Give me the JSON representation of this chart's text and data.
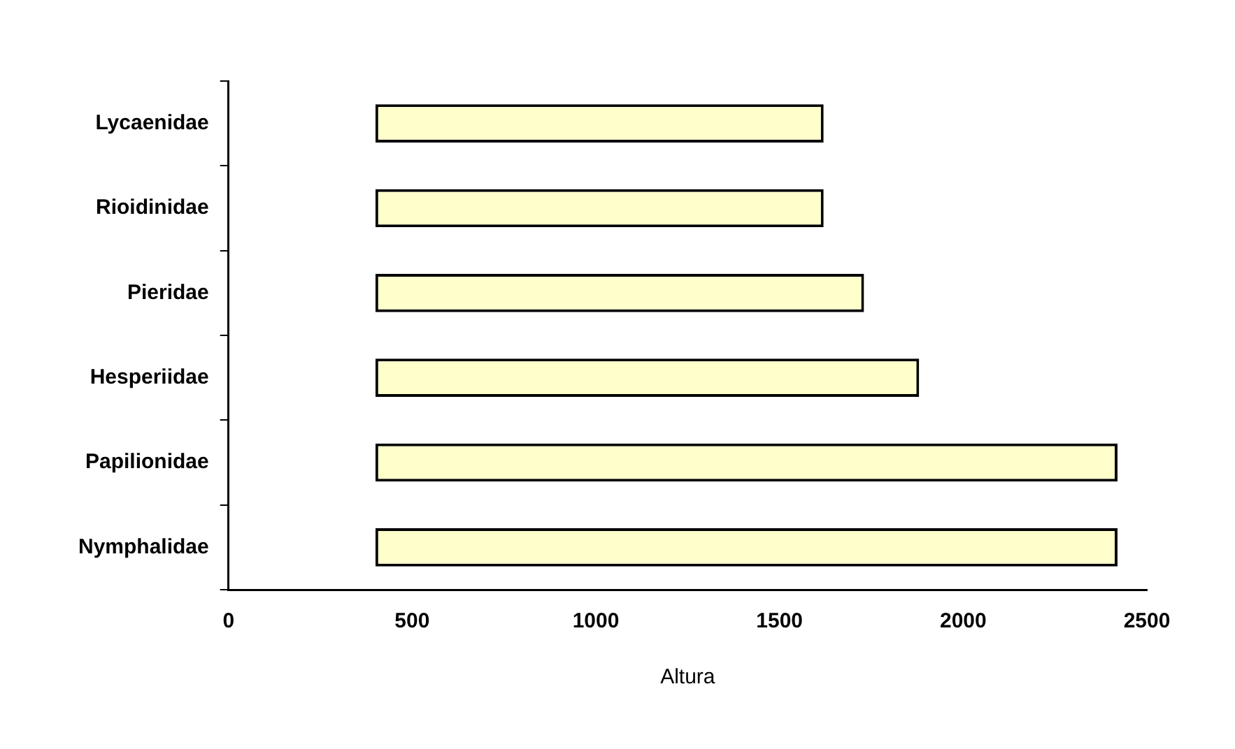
{
  "chart_data": {
    "type": "bar",
    "orientation": "horizontal",
    "xlabel": "Altura",
    "categories": [
      "Lycaenidae",
      "Rioidinidae",
      "Pieridae",
      "Hesperiidae",
      "Papilionidae",
      "Nymphalidae"
    ],
    "base": [
      400,
      400,
      400,
      400,
      400,
      400
    ],
    "values": [
      1220,
      1220,
      1330,
      1480,
      2020,
      2020
    ],
    "color": "#ffffcc",
    "xlim": [
      0,
      2500
    ],
    "xticks": [
      0,
      500,
      1000,
      1500,
      2000,
      2500
    ],
    "grid": false,
    "legend": false
  }
}
